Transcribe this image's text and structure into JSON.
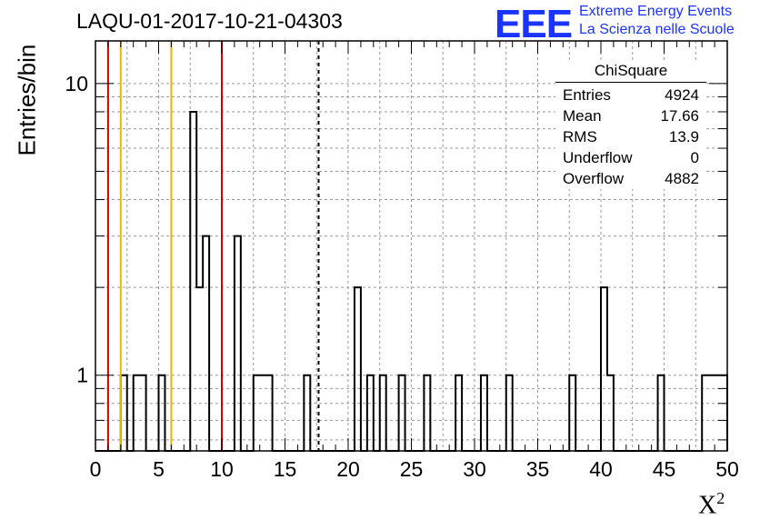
{
  "title": "LAQU-01-2017-10-21-04303",
  "logo": {
    "mark": "EEE",
    "line1": "Extreme Energy Events",
    "line2": "La Scienza nelle Scuole",
    "color": "#1a33ff"
  },
  "stats": {
    "title": "ChiSquare",
    "rows": [
      {
        "label": "Entries",
        "value": "4924"
      },
      {
        "label": "Mean",
        "value": "17.66"
      },
      {
        "label": "RMS",
        "value": "13.9"
      },
      {
        "label": "Underflow",
        "value": "0"
      },
      {
        "label": "Overflow",
        "value": "4882"
      }
    ]
  },
  "chart_data": {
    "type": "bar",
    "title": "LAQU-01-2017-10-21-04303",
    "xlabel": "X",
    "xlabel_sup": "2",
    "ylabel": "Entries/bin",
    "xlim": [
      0,
      50
    ],
    "ylim": [
      0.55,
      14
    ],
    "y_log": true,
    "grid": true,
    "bin_width": 0.5,
    "x_ticks": [
      0,
      5,
      10,
      15,
      20,
      25,
      30,
      35,
      40,
      45,
      50
    ],
    "y_ticks": [
      1,
      10
    ],
    "bins": [
      {
        "x": 2.0,
        "count": 1
      },
      {
        "x": 3.0,
        "count": 1
      },
      {
        "x": 3.5,
        "count": 1
      },
      {
        "x": 5.0,
        "count": 1
      },
      {
        "x": 7.5,
        "count": 8
      },
      {
        "x": 8.0,
        "count": 2
      },
      {
        "x": 8.5,
        "count": 3
      },
      {
        "x": 11.0,
        "count": 3
      },
      {
        "x": 12.5,
        "count": 1
      },
      {
        "x": 13.0,
        "count": 1
      },
      {
        "x": 13.5,
        "count": 1
      },
      {
        "x": 16.5,
        "count": 1
      },
      {
        "x": 20.5,
        "count": 2
      },
      {
        "x": 21.5,
        "count": 1
      },
      {
        "x": 22.5,
        "count": 1
      },
      {
        "x": 24.0,
        "count": 1
      },
      {
        "x": 26.0,
        "count": 1
      },
      {
        "x": 28.5,
        "count": 1
      },
      {
        "x": 30.5,
        "count": 1
      },
      {
        "x": 32.5,
        "count": 1
      },
      {
        "x": 37.5,
        "count": 1
      },
      {
        "x": 40.0,
        "count": 2
      },
      {
        "x": 40.5,
        "count": 1
      },
      {
        "x": 44.5,
        "count": 1
      },
      {
        "x": 48.0,
        "count": 1
      },
      {
        "x": 48.5,
        "count": 1
      },
      {
        "x": 49.0,
        "count": 1
      },
      {
        "x": 49.5,
        "count": 1
      }
    ],
    "reference_lines": [
      {
        "x": 1,
        "color": "#d40000",
        "style": "solid"
      },
      {
        "x": 2,
        "color": "#e8b800",
        "style": "solid"
      },
      {
        "x": 6,
        "color": "#e8b800",
        "style": "solid"
      },
      {
        "x": 10,
        "color": "#d40000",
        "style": "solid"
      },
      {
        "x": 17.66,
        "color": "#000000",
        "style": "dashed"
      }
    ]
  }
}
